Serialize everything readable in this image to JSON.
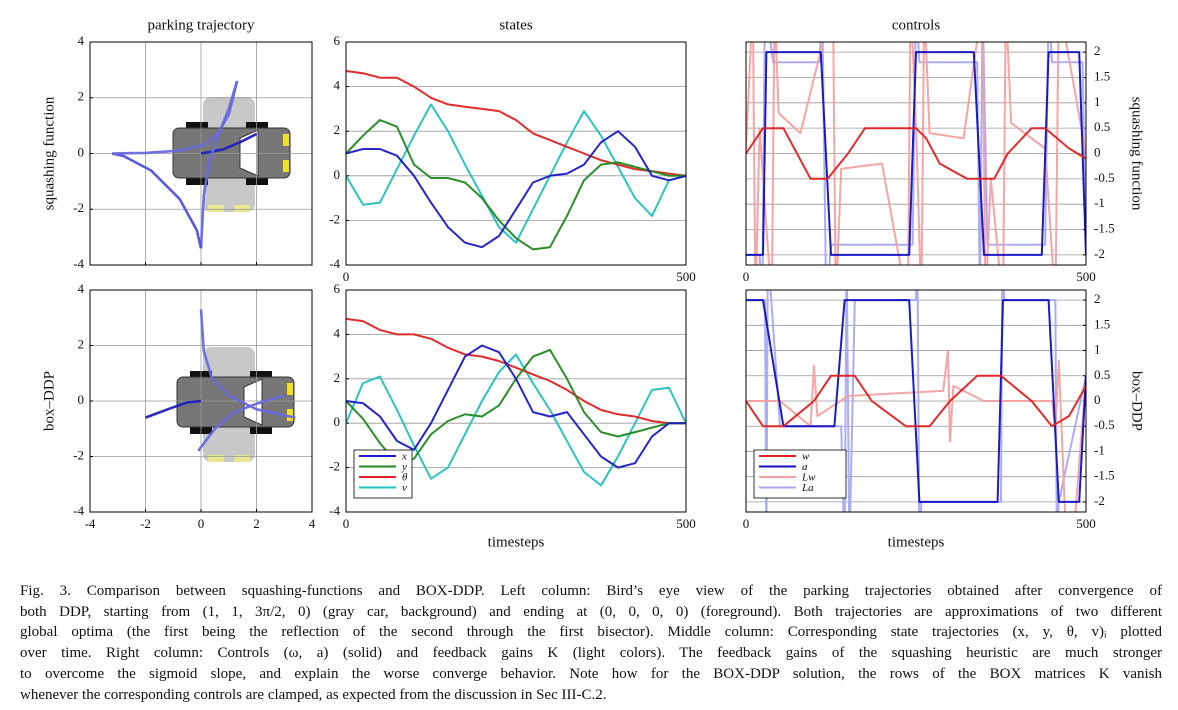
{
  "chart_data": [
    {
      "type": "line",
      "title": "parking trajectory",
      "ylabel": "squashing function",
      "xlim": [
        -4,
        4
      ],
      "ylim": [
        -4,
        4
      ],
      "xticks": [
        -4,
        -2,
        0,
        2,
        4
      ],
      "yticks": [
        -4,
        -2,
        0,
        2,
        4
      ],
      "xtick_labels": false,
      "grid": true,
      "series": [
        {
          "color": "#6a6ae0",
          "x": [
            1.3,
            1.0,
            0.6,
            0.1,
            -0.8,
            -2.0,
            -3.2
          ],
          "values": [
            2.6,
            1.4,
            0.7,
            0.3,
            0.1,
            0.02,
            0
          ]
        },
        {
          "color": "#5050d8",
          "x": [
            -3.2,
            -2.79,
            -1.8,
            -0.77,
            -0.15,
            0
          ],
          "values": [
            0,
            -0.09,
            -0.61,
            -1.63,
            -2.75,
            -3.4
          ]
        },
        {
          "color": "#6a6ae0",
          "x": [
            0,
            0.1,
            0.3,
            0.6,
            1.0,
            1.3
          ],
          "values": [
            -3.4,
            -1.5,
            -0.3,
            0.6,
            1.6,
            2.6
          ]
        },
        {
          "color": "#2020c0",
          "x": [
            2.0,
            1.4,
            0.8,
            0.3,
            0
          ],
          "values": [
            0.7,
            0.4,
            0.15,
            0.05,
            0
          ]
        }
      ]
    },
    {
      "type": "line",
      "title": "states",
      "x": [
        0,
        25,
        50,
        75,
        100,
        125,
        150,
        175,
        200,
        225,
        250,
        275,
        300,
        325,
        350,
        375,
        400,
        425,
        450,
        475,
        500
      ],
      "xlim": [
        0,
        500
      ],
      "ylim": [
        -4,
        6
      ],
      "xticks": [
        0,
        500
      ],
      "yticks": [
        -4,
        -2,
        0,
        2,
        4,
        6
      ],
      "grid": true,
      "series": [
        {
          "color": "#1a1ac8",
          "values": [
            1.0,
            1.2,
            1.2,
            0.9,
            0,
            -1.2,
            -2.3,
            -3.0,
            -3.2,
            -2.7,
            -1.5,
            -0.3,
            0,
            0.1,
            0.5,
            1.5,
            2.0,
            1.3,
            0,
            -0.2,
            0
          ]
        },
        {
          "color": "#1e8a1e",
          "values": [
            1.0,
            1.8,
            2.5,
            2.2,
            0.5,
            -0.1,
            -0.1,
            -0.3,
            -1.0,
            -2.0,
            -2.8,
            -3.3,
            -3.2,
            -1.8,
            -0.2,
            0.5,
            0.6,
            0.4,
            0.2,
            0,
            0
          ]
        },
        {
          "color": "#e02020",
          "values": [
            4.7,
            4.6,
            4.4,
            4.4,
            4.0,
            3.5,
            3.2,
            3.1,
            3.0,
            2.9,
            2.5,
            1.9,
            1.6,
            1.3,
            1.0,
            0.7,
            0.5,
            0.3,
            0.2,
            0.1,
            0
          ]
        },
        {
          "color": "#20c0c0",
          "values": [
            0,
            -1.3,
            -1.2,
            0.3,
            1.8,
            3.2,
            2.0,
            0.5,
            -0.9,
            -2.3,
            -3.0,
            -1.5,
            0,
            1.5,
            2.9,
            1.8,
            0.4,
            -1.0,
            -1.8,
            -0.2,
            0
          ]
        }
      ]
    },
    {
      "type": "line",
      "title": "controls",
      "ylabel": "squashing function",
      "yaxis": "right",
      "xlim": [
        0,
        500
      ],
      "ylim": [
        -2.2,
        2.2
      ],
      "xticks": [
        0,
        500
      ],
      "yticks": [
        -2,
        -1.5,
        -1,
        -0.5,
        0,
        0.5,
        1,
        1.5,
        2
      ],
      "grid": true,
      "series": [
        {
          "color": "#e02020",
          "x": [
            0,
            25,
            55,
            95,
            120,
            150,
            175,
            210,
            250,
            265,
            285,
            325,
            365,
            385,
            420,
            440,
            475,
            500
          ],
          "values": [
            0,
            0.5,
            0.5,
            -0.5,
            -0.5,
            0,
            0.5,
            0.5,
            0.5,
            0.3,
            -0.2,
            -0.5,
            -0.5,
            0,
            0.5,
            0.5,
            0.1,
            -0.1
          ]
        },
        {
          "color": "#1010c0",
          "x": [
            0,
            25,
            30,
            110,
            125,
            240,
            250,
            335,
            350,
            435,
            445,
            490,
            500
          ],
          "values": [
            -2,
            -2,
            2,
            2,
            -2,
            -2,
            2,
            2,
            -2,
            -2,
            2,
            2,
            -2
          ]
        },
        {
          "color": "#f4a0a0",
          "x": [
            0,
            10,
            14,
            20,
            38,
            42,
            48,
            80,
            128,
            132,
            140,
            200,
            238,
            242,
            250,
            258,
            262,
            270,
            320,
            348,
            352,
            360,
            378,
            382,
            390,
            440,
            455,
            460,
            500
          ],
          "values": [
            0.1,
            3,
            -3,
            0.5,
            -3,
            3,
            0.8,
            0.4,
            3,
            -3,
            -0.3,
            -0.2,
            -3,
            3,
            0.6,
            -3,
            3,
            0.4,
            0.3,
            3,
            -3,
            -0.5,
            -3,
            3,
            0.6,
            0.1,
            -3,
            3,
            0
          ]
        },
        {
          "color": "#a8a8f4",
          "x": [
            0,
            20,
            24,
            28,
            40,
            108,
            112,
            118,
            125,
            245,
            250,
            255,
            340,
            344,
            348,
            355,
            440,
            445,
            450,
            495,
            500
          ],
          "values": [
            -2,
            -2,
            -3,
            3,
            1.8,
            1.8,
            3,
            -3,
            -1.8,
            -1.8,
            3,
            1.8,
            1.8,
            -3,
            3,
            -1.8,
            -1.8,
            3,
            1.8,
            1.8,
            -2
          ]
        }
      ]
    },
    {
      "type": "line",
      "ylabel": "box–DDP",
      "xlim": [
        -4,
        4
      ],
      "ylim": [
        -4,
        4
      ],
      "xticks": [
        -4,
        -2,
        0,
        2,
        4
      ],
      "yticks": [
        -4,
        -2,
        0,
        2,
        4
      ],
      "grid": true,
      "series": [
        {
          "color": "#6a6ae0",
          "x": [
            0,
            0.1,
            0.4,
            1.0,
            2.0,
            3.4
          ],
          "values": [
            3.3,
            1.8,
            0.8,
            0.2,
            -0.3,
            -0.6
          ]
        },
        {
          "color": "#6a6ae0",
          "x": [
            -0.1,
            0.5,
            1.2,
            2.0,
            3.0
          ],
          "values": [
            -1.8,
            -1.0,
            -0.4,
            -0.1,
            0.2
          ]
        },
        {
          "color": "#2020c0",
          "x": [
            -2.0,
            -1.2,
            -0.5,
            0
          ],
          "values": [
            -0.6,
            -0.3,
            -0.05,
            0
          ]
        }
      ]
    },
    {
      "type": "line",
      "xlabel": "timesteps",
      "legend": "lower left",
      "x": [
        0,
        25,
        50,
        75,
        100,
        125,
        150,
        175,
        200,
        225,
        250,
        275,
        300,
        325,
        350,
        375,
        400,
        425,
        450,
        475,
        500
      ],
      "xlim": [
        0,
        500
      ],
      "ylim": [
        -4,
        6
      ],
      "xticks": [
        0,
        500
      ],
      "yticks": [
        -4,
        -2,
        0,
        2,
        4,
        6
      ],
      "grid": true,
      "series": [
        {
          "name": "x",
          "color": "#1a1ac8",
          "values": [
            1.0,
            0.9,
            0.3,
            -0.8,
            -1.2,
            0,
            1.5,
            3.0,
            3.5,
            3.2,
            2.0,
            0.5,
            0.3,
            0.5,
            -0.5,
            -1.5,
            -2.0,
            -1.8,
            -0.6,
            0,
            0
          ]
        },
        {
          "name": "y",
          "color": "#1e8a1e",
          "values": [
            1.0,
            0.2,
            -0.9,
            -1.8,
            -1.6,
            -0.5,
            0.1,
            0.4,
            0.3,
            0.8,
            2.0,
            3.0,
            3.3,
            2.0,
            0.5,
            -0.4,
            -0.6,
            -0.4,
            -0.2,
            0,
            0
          ]
        },
        {
          "name": "θ",
          "color": "#e02020",
          "values": [
            4.7,
            4.6,
            4.2,
            4.0,
            4.0,
            3.8,
            3.4,
            3.1,
            3.0,
            2.8,
            2.5,
            2.2,
            1.9,
            1.5,
            1.0,
            0.6,
            0.4,
            0.3,
            0.1,
            0,
            0
          ]
        },
        {
          "name": "v",
          "color": "#20c0c0",
          "values": [
            0,
            1.8,
            2.1,
            0.6,
            -1.0,
            -2.5,
            -2.0,
            -0.5,
            1.0,
            2.3,
            3.1,
            1.8,
            0.6,
            -0.8,
            -2.2,
            -2.8,
            -1.5,
            0,
            1.5,
            1.6,
            0
          ]
        }
      ]
    },
    {
      "type": "line",
      "xlabel": "timesteps",
      "ylabel": "box–DDP",
      "yaxis": "right",
      "legend": "lower left",
      "xlim": [
        0,
        500
      ],
      "ylim": [
        -2.2,
        2.2
      ],
      "xticks": [
        0,
        500
      ],
      "yticks": [
        -2,
        -1.5,
        -1,
        -0.5,
        0,
        0.5,
        1,
        1.5,
        2
      ],
      "grid": true,
      "series": [
        {
          "name": "w",
          "color": "#e02020",
          "x": [
            0,
            25,
            55,
            100,
            125,
            160,
            185,
            235,
            270,
            300,
            340,
            375,
            420,
            450,
            475,
            500
          ],
          "values": [
            0,
            -0.5,
            -0.5,
            0,
            0.5,
            0.5,
            0,
            -0.5,
            -0.5,
            0,
            0.5,
            0.5,
            0,
            -0.5,
            -0.3,
            0.3
          ]
        },
        {
          "name": "a",
          "color": "#1010c0",
          "x": [
            0,
            25,
            55,
            130,
            145,
            240,
            255,
            370,
            378,
            445,
            460,
            490,
            500
          ],
          "values": [
            2,
            2,
            -0.5,
            -0.5,
            2,
            2,
            -2,
            -2,
            2,
            2,
            -2,
            -2,
            0.5
          ]
        },
        {
          "name": "Lw",
          "color": "#f4a0a0",
          "x": [
            0,
            50,
            95,
            100,
            105,
            150,
            290,
            297,
            300,
            305,
            350,
            450,
            455,
            460,
            470,
            480,
            500
          ],
          "values": [
            0,
            0,
            -0.5,
            0.7,
            -0.3,
            0.1,
            0.2,
            1.0,
            -0.8,
            0.3,
            0,
            0,
            -0.5,
            0.8,
            -2.5,
            -3,
            0.5
          ]
        },
        {
          "name": "La",
          "color": "#a8a8f4",
          "x": [
            0,
            28,
            30,
            32,
            50,
            140,
            145,
            148,
            152,
            160,
            250,
            252,
            255,
            258,
            375,
            377,
            380,
            455,
            457,
            460,
            500
          ],
          "values": [
            2,
            2,
            -3,
            3,
            -0.5,
            -0.5,
            -3,
            3,
            -3,
            2,
            2,
            3,
            -3,
            -2,
            -2,
            3,
            2,
            2,
            -3,
            -2,
            0.5
          ]
        }
      ]
    }
  ],
  "caption": {
    "lines": [
      "Fig. 3.   Comparison between squashing-functions and BOX-DDP. Left column: Bird’s eye view of the parking trajectories obtained after convergence of",
      "both DDP, starting from (1, 1, 3π/2, 0) (gray car, background) and ending at (0, 0, 0, 0) (foreground). Both trajectories are approximations of two different",
      "global optima (the first being the reflection of the second through the first bisector). Middle column: Corresponding state trajectories (x, y, θ, v)ᵢ plotted",
      "over time. Right column: Controls (ω, a) (solid) and feedback gains K (light colors). The feedback gains of the squashing heuristic are much stronger",
      "to overcome the sigmoid slope, and explain the worse converge behavior. Note how for the BOX-DDP solution, the rows of the BOX matrices K vanish",
      "whenever the corresponding controls are clamped, as expected from the discussion in Sec III-C.2."
    ]
  }
}
